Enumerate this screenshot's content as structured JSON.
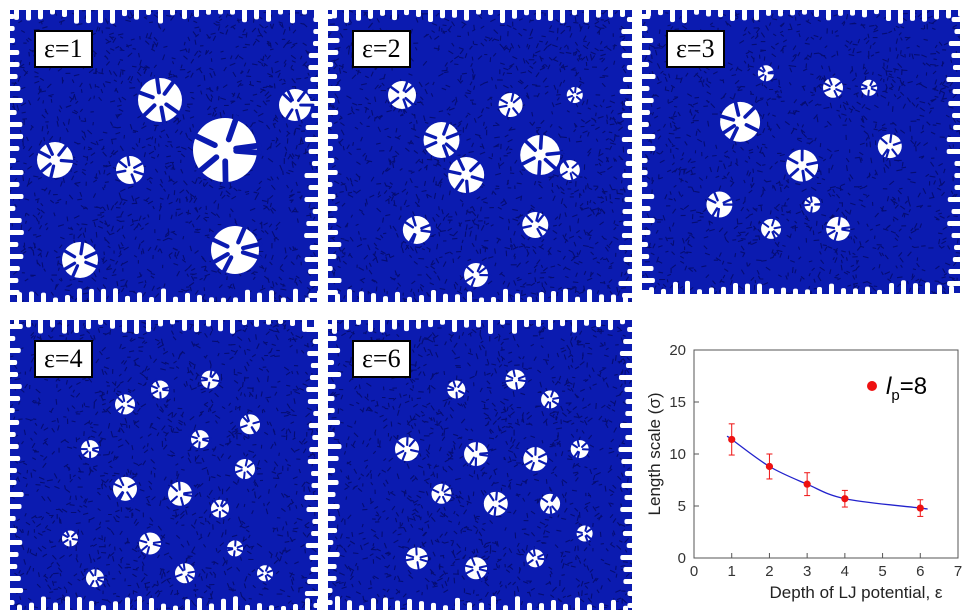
{
  "panels": [
    {
      "label": "ε=1",
      "epsilon": 1
    },
    {
      "label": "ε=2",
      "epsilon": 2
    },
    {
      "label": "ε=3",
      "epsilon": 3
    },
    {
      "label": "ε=4",
      "epsilon": 4
    },
    {
      "label": "ε=6",
      "epsilon": 6
    }
  ],
  "colors": {
    "membrane": "#0b1bb0",
    "membrane_dark": "#050d73",
    "pores": "#ffffff",
    "points": "#ee1111",
    "fit": "#2222cc"
  },
  "chart_data": {
    "type": "scatter",
    "xlabel": "Depth of LJ potential, ε",
    "ylabel": "Length scale (σ)",
    "xlim": [
      0,
      7
    ],
    "ylim": [
      0,
      20
    ],
    "xticks": [
      "0",
      "1",
      "2",
      "3",
      "4",
      "5",
      "6",
      "7"
    ],
    "yticks": [
      "0",
      "5",
      "10",
      "15",
      "20"
    ],
    "legend": {
      "symbol": "l",
      "subscript": "p",
      "value": "=8",
      "placement": "top-right"
    },
    "series": [
      {
        "x": [
          1,
          2,
          3,
          4,
          6
        ],
        "y": [
          11.4,
          8.8,
          7.1,
          5.7,
          4.8
        ],
        "yerr": [
          1.5,
          1.2,
          1.1,
          0.8,
          0.8
        ]
      }
    ],
    "fit_curve": {
      "type": "smooth-decay",
      "x_range": [
        0.9,
        6.1
      ]
    }
  }
}
